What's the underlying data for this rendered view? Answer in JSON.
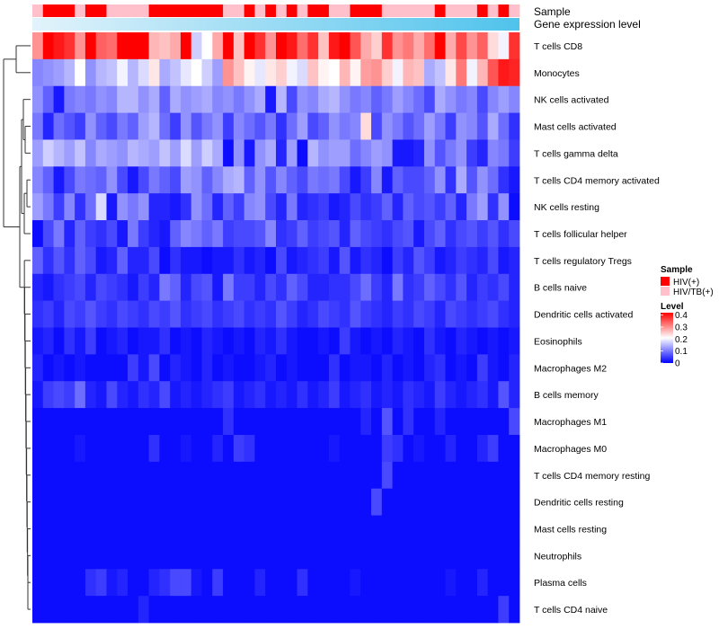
{
  "chart_data": {
    "type": "heatmap",
    "title": "",
    "annotation_rows": [
      "Sample",
      "Gene expression level"
    ],
    "rows": [
      "T cells CD8",
      "Monocytes",
      "NK cells activated",
      "Mast cells activated",
      "T cells gamma delta",
      "T cells CD4 memory activated",
      "NK cells resting",
      "T cells follicular helper",
      "T cells regulatory  Tregs",
      "B cells naive",
      "Dendritic cells activated",
      "Eosinophils",
      "Macrophages M2",
      "B cells memory",
      "Macrophages M1",
      "Macrophages M0",
      "T cells CD4 memory resting",
      "Dendritic cells resting",
      "Mast cells resting",
      "Neutrophils",
      "Plasma cells",
      "T cells CD4 naive"
    ],
    "sample_groups": [
      "HIV/TB(+)",
      "HIV(+)",
      "HIV(+)",
      "HIV(+)",
      "HIV/TB(+)",
      "HIV(+)",
      "HIV(+)",
      "HIV/TB(+)",
      "HIV/TB(+)",
      "HIV/TB(+)",
      "HIV/TB(+)",
      "HIV(+)",
      "HIV(+)",
      "HIV(+)",
      "HIV(+)",
      "HIV(+)",
      "HIV(+)",
      "HIV(+)",
      "HIV/TB(+)",
      "HIV/TB(+)",
      "HIV(+)",
      "HIV/TB(+)",
      "HIV(+)",
      "HIV/TB(+)",
      "HIV(+)",
      "HIV/TB(+)",
      "HIV(+)",
      "HIV(+)",
      "HIV/TB(+)",
      "HIV/TB(+)",
      "HIV(+)",
      "HIV(+)",
      "HIV(+)",
      "HIV/TB(+)",
      "HIV/TB(+)",
      "HIV/TB(+)",
      "HIV/TB(+)",
      "HIV/TB(+)",
      "HIV(+)",
      "HIV/TB(+)",
      "HIV/TB(+)",
      "HIV/TB(+)",
      "HIV(+)",
      "HIV/TB(+)",
      "HIV(+)",
      "HIV/TB(+)"
    ],
    "gene_expression_level_range": [
      0,
      1
    ],
    "values": [
      [
        0.3,
        0.42,
        0.4,
        0.38,
        0.3,
        0.42,
        0.34,
        0.33,
        0.42,
        0.42,
        0.42,
        0.27,
        0.26,
        0.28,
        0.42,
        0.17,
        0.21,
        0.28,
        0.42,
        0.26,
        0.42,
        0.38,
        0.3,
        0.42,
        0.4,
        0.33,
        0.38,
        0.26,
        0.4,
        0.42,
        0.35,
        0.28,
        0.25,
        0.38,
        0.3,
        0.32,
        0.28,
        0.33,
        0.42,
        0.28,
        0.36,
        0.3,
        0.34,
        0.24,
        0.2,
        0.38
      ],
      [
        0.11,
        0.12,
        0.13,
        0.15,
        0.21,
        0.12,
        0.15,
        0.16,
        0.2,
        0.15,
        0.18,
        0.23,
        0.14,
        0.16,
        0.19,
        0.21,
        0.17,
        0.13,
        0.3,
        0.26,
        0.22,
        0.19,
        0.23,
        0.25,
        0.2,
        0.18,
        0.26,
        0.22,
        0.21,
        0.27,
        0.22,
        0.29,
        0.3,
        0.25,
        0.2,
        0.27,
        0.26,
        0.14,
        0.16,
        0.23,
        0.32,
        0.2,
        0.27,
        0.35,
        0.4,
        0.39
      ],
      [
        0.12,
        0.08,
        0.02,
        0.1,
        0.11,
        0.1,
        0.12,
        0.11,
        0.15,
        0.15,
        0.12,
        0.14,
        0.08,
        0.14,
        0.12,
        0.13,
        0.14,
        0.11,
        0.12,
        0.1,
        0.12,
        0.14,
        0.02,
        0.15,
        0.06,
        0.12,
        0.11,
        0.14,
        0.15,
        0.12,
        0.1,
        0.11,
        0.08,
        0.1,
        0.13,
        0.11,
        0.09,
        0.06,
        0.14,
        0.12,
        0.1,
        0.11,
        0.06,
        0.11,
        0.13,
        0.11
      ],
      [
        0.1,
        0.03,
        0.09,
        0.07,
        0.05,
        0.12,
        0.08,
        0.06,
        0.1,
        0.08,
        0.13,
        0.15,
        0.09,
        0.05,
        0.12,
        0.07,
        0.1,
        0.12,
        0.05,
        0.11,
        0.09,
        0.07,
        0.1,
        0.04,
        0.09,
        0.13,
        0.06,
        0.08,
        0.12,
        0.1,
        0.11,
        0.24,
        0.06,
        0.12,
        0.1,
        0.07,
        0.09,
        0.13,
        0.1,
        0.05,
        0.12,
        0.11,
        0.07,
        0.14,
        0.09,
        0.04
      ],
      [
        0.13,
        0.17,
        0.15,
        0.13,
        0.16,
        0.11,
        0.14,
        0.13,
        0.12,
        0.15,
        0.14,
        0.13,
        0.16,
        0.13,
        0.18,
        0.13,
        0.17,
        0.14,
        0.01,
        0.12,
        0.02,
        0.12,
        0.14,
        0.03,
        0.13,
        0.01,
        0.15,
        0.12,
        0.13,
        0.13,
        0.09,
        0.11,
        0.13,
        0.12,
        0.02,
        0.02,
        0.03,
        0.12,
        0.07,
        0.1,
        0.12,
        0.05,
        0.03,
        0.11,
        0.1,
        0.05
      ],
      [
        0.11,
        0.08,
        0.02,
        0.06,
        0.1,
        0.09,
        0.08,
        0.12,
        0.06,
        0.02,
        0.06,
        0.1,
        0.08,
        0.06,
        0.13,
        0.12,
        0.08,
        0.11,
        0.14,
        0.15,
        0.08,
        0.12,
        0.07,
        0.11,
        0.08,
        0.06,
        0.1,
        0.09,
        0.1,
        0.06,
        0.02,
        0.05,
        0.11,
        0.02,
        0.08,
        0.06,
        0.06,
        0.08,
        0.12,
        0.04,
        0.14,
        0.07,
        0.12,
        0.09,
        0.04,
        0.02
      ],
      [
        0.13,
        0.1,
        0.05,
        0.11,
        0.04,
        0.09,
        0.18,
        0.02,
        0.12,
        0.1,
        0.12,
        0.03,
        0.03,
        0.02,
        0.04,
        0.12,
        0.09,
        0.03,
        0.08,
        0.05,
        0.11,
        0.12,
        0.06,
        0.03,
        0.1,
        0.03,
        0.04,
        0.05,
        0.02,
        0.03,
        0.06,
        0.04,
        0.05,
        0.08,
        0.03,
        0.08,
        0.06,
        0.07,
        0.05,
        0.08,
        0.03,
        0.1,
        0.13,
        0.04,
        0.12,
        0.01
      ],
      [
        0.01,
        0.06,
        0.1,
        0.03,
        0.08,
        0.05,
        0.04,
        0.06,
        0.02,
        0.1,
        0.05,
        0.03,
        0.02,
        0.08,
        0.11,
        0.1,
        0.08,
        0.1,
        0.05,
        0.06,
        0.06,
        0.07,
        0.11,
        0.04,
        0.05,
        0.08,
        0.05,
        0.06,
        0.07,
        0.03,
        0.08,
        0.06,
        0.05,
        0.04,
        0.06,
        0.07,
        0.02,
        0.06,
        0.08,
        0.04,
        0.06,
        0.07,
        0.05,
        0.07,
        0.04,
        0.06
      ],
      [
        0.08,
        0.04,
        0.07,
        0.04,
        0.08,
        0.06,
        0.02,
        0.03,
        0.08,
        0.03,
        0.03,
        0.06,
        0.01,
        0.04,
        0.02,
        0.02,
        0.01,
        0.02,
        0.02,
        0.04,
        0.02,
        0.03,
        0.01,
        0.06,
        0.02,
        0.03,
        0.04,
        0.05,
        0.02,
        0.07,
        0.02,
        0.04,
        0.03,
        0.01,
        0.05,
        0.03,
        0.07,
        0.05,
        0.02,
        0.03,
        0.05,
        0.04,
        0.03,
        0.06,
        0.02,
        0.03
      ],
      [
        0.03,
        0.02,
        0.04,
        0.05,
        0.06,
        0.03,
        0.06,
        0.05,
        0.04,
        0.02,
        0.05,
        0.03,
        0.1,
        0.08,
        0.03,
        0.06,
        0.07,
        0.02,
        0.1,
        0.05,
        0.05,
        0.03,
        0.06,
        0.04,
        0.08,
        0.06,
        0.03,
        0.03,
        0.04,
        0.04,
        0.06,
        0.09,
        0.05,
        0.03,
        0.1,
        0.04,
        0.05,
        0.08,
        0.06,
        0.04,
        0.07,
        0.03,
        0.05,
        0.04,
        0.06,
        0.03
      ],
      [
        0.04,
        0.05,
        0.03,
        0.06,
        0.05,
        0.07,
        0.05,
        0.04,
        0.06,
        0.05,
        0.04,
        0.06,
        0.05,
        0.07,
        0.04,
        0.05,
        0.06,
        0.04,
        0.05,
        0.06,
        0.04,
        0.05,
        0.04,
        0.07,
        0.05,
        0.03,
        0.04,
        0.06,
        0.05,
        0.04,
        0.07,
        0.05,
        0.04,
        0.03,
        0.05,
        0.04,
        0.06,
        0.05,
        0.03,
        0.06,
        0.05,
        0.04,
        0.05,
        0.06,
        0.04,
        0.03
      ],
      [
        0.02,
        0.03,
        0.01,
        0.04,
        0.02,
        0.05,
        0.01,
        0.02,
        0.03,
        0.01,
        0.02,
        0.02,
        0.04,
        0.01,
        0.02,
        0.01,
        0.03,
        0.02,
        0.01,
        0.02,
        0.01,
        0.03,
        0.02,
        0.04,
        0.02,
        0.01,
        0.01,
        0.02,
        0.01,
        0.05,
        0.02,
        0.01,
        0.02,
        0.01,
        0.03,
        0.02,
        0.01,
        0.04,
        0.02,
        0.01,
        0.03,
        0.02,
        0.01,
        0.02,
        0.01,
        0.02
      ],
      [
        0.03,
        0.01,
        0.02,
        0.01,
        0.02,
        0.01,
        0.01,
        0.01,
        0.01,
        0.05,
        0.02,
        0.06,
        0.01,
        0.03,
        0.02,
        0.01,
        0.03,
        0.01,
        0.02,
        0.01,
        0.01,
        0.02,
        0.03,
        0.01,
        0.02,
        0.01,
        0.01,
        0.01,
        0.04,
        0.01,
        0.02,
        0.02,
        0.01,
        0.03,
        0.01,
        0.02,
        0.01,
        0.03,
        0.04,
        0.01,
        0.02,
        0.01,
        0.05,
        0.02,
        0.01,
        0.03
      ],
      [
        0.02,
        0.05,
        0.06,
        0.05,
        0.09,
        0.03,
        0.02,
        0.06,
        0.03,
        0.02,
        0.04,
        0.03,
        0.06,
        0.02,
        0.03,
        0.02,
        0.03,
        0.04,
        0.05,
        0.02,
        0.03,
        0.04,
        0.02,
        0.03,
        0.02,
        0.04,
        0.02,
        0.03,
        0.05,
        0.02,
        0.03,
        0.04,
        0.02,
        0.03,
        0.02,
        0.04,
        0.03,
        0.02,
        0.05,
        0.03,
        0.02,
        0.03,
        0.04,
        0.02,
        0.07,
        0.03
      ],
      [
        0.01,
        0.01,
        0.01,
        0.01,
        0.01,
        0.01,
        0.01,
        0.01,
        0.01,
        0.01,
        0.01,
        0.01,
        0.01,
        0.01,
        0.01,
        0.01,
        0.01,
        0.01,
        0.04,
        0.01,
        0.01,
        0.01,
        0.01,
        0.01,
        0.01,
        0.01,
        0.01,
        0.01,
        0.01,
        0.01,
        0.01,
        0.03,
        0.01,
        0.07,
        0.01,
        0.04,
        0.01,
        0.01,
        0.03,
        0.01,
        0.01,
        0.01,
        0.01,
        0.01,
        0.01,
        0.06
      ],
      [
        0.01,
        0.01,
        0.01,
        0.01,
        0.02,
        0.01,
        0.01,
        0.01,
        0.01,
        0.01,
        0.01,
        0.04,
        0.01,
        0.01,
        0.02,
        0.01,
        0.01,
        0.03,
        0.01,
        0.05,
        0.04,
        0.01,
        0.01,
        0.01,
        0.01,
        0.01,
        0.01,
        0.01,
        0.02,
        0.01,
        0.01,
        0.01,
        0.01,
        0.05,
        0.04,
        0.01,
        0.02,
        0.01,
        0.01,
        0.03,
        0.01,
        0.01,
        0.03,
        0.05,
        0.01,
        0.01
      ],
      [
        0.01,
        0.01,
        0.01,
        0.01,
        0.01,
        0.01,
        0.01,
        0.01,
        0.01,
        0.01,
        0.01,
        0.01,
        0.01,
        0.01,
        0.01,
        0.01,
        0.01,
        0.01,
        0.01,
        0.01,
        0.01,
        0.01,
        0.01,
        0.01,
        0.01,
        0.01,
        0.01,
        0.01,
        0.01,
        0.01,
        0.01,
        0.01,
        0.01,
        0.06,
        0.01,
        0.01,
        0.01,
        0.01,
        0.01,
        0.01,
        0.01,
        0.01,
        0.01,
        0.01,
        0.01,
        0.01
      ],
      [
        0.01,
        0.01,
        0.01,
        0.01,
        0.01,
        0.01,
        0.01,
        0.01,
        0.01,
        0.01,
        0.01,
        0.01,
        0.01,
        0.01,
        0.01,
        0.01,
        0.01,
        0.01,
        0.01,
        0.01,
        0.01,
        0.01,
        0.01,
        0.01,
        0.01,
        0.01,
        0.01,
        0.01,
        0.01,
        0.01,
        0.01,
        0.01,
        0.06,
        0.01,
        0.01,
        0.01,
        0.01,
        0.01,
        0.01,
        0.01,
        0.01,
        0.01,
        0.01,
        0.01,
        0.01,
        0.01
      ],
      [
        0.01,
        0.01,
        0.01,
        0.01,
        0.01,
        0.01,
        0.01,
        0.01,
        0.01,
        0.01,
        0.01,
        0.01,
        0.01,
        0.01,
        0.01,
        0.01,
        0.01,
        0.01,
        0.01,
        0.01,
        0.01,
        0.01,
        0.01,
        0.01,
        0.01,
        0.01,
        0.01,
        0.01,
        0.01,
        0.01,
        0.01,
        0.01,
        0.01,
        0.01,
        0.01,
        0.01,
        0.01,
        0.01,
        0.01,
        0.01,
        0.01,
        0.01,
        0.01,
        0.01,
        0.01,
        0.01
      ],
      [
        0.01,
        0.01,
        0.01,
        0.01,
        0.01,
        0.01,
        0.01,
        0.01,
        0.01,
        0.01,
        0.01,
        0.01,
        0.01,
        0.01,
        0.01,
        0.01,
        0.01,
        0.01,
        0.01,
        0.01,
        0.01,
        0.01,
        0.01,
        0.01,
        0.01,
        0.01,
        0.01,
        0.01,
        0.01,
        0.01,
        0.01,
        0.01,
        0.01,
        0.01,
        0.01,
        0.01,
        0.01,
        0.01,
        0.01,
        0.01,
        0.01,
        0.01,
        0.01,
        0.01,
        0.01,
        0.01
      ],
      [
        0.01,
        0.01,
        0.01,
        0.01,
        0.01,
        0.04,
        0.05,
        0.02,
        0.03,
        0.01,
        0.01,
        0.03,
        0.04,
        0.06,
        0.06,
        0.02,
        0.01,
        0.05,
        0.01,
        0.01,
        0.01,
        0.03,
        0.01,
        0.01,
        0.01,
        0.04,
        0.01,
        0.01,
        0.01,
        0.01,
        0.02,
        0.01,
        0.01,
        0.01,
        0.01,
        0.01,
        0.01,
        0.01,
        0.01,
        0.02,
        0.01,
        0.01,
        0.03,
        0.01,
        0.01,
        0.01
      ],
      [
        0.01,
        0.01,
        0.01,
        0.01,
        0.01,
        0.01,
        0.01,
        0.01,
        0.01,
        0.01,
        0.03,
        0.01,
        0.01,
        0.01,
        0.01,
        0.01,
        0.01,
        0.01,
        0.01,
        0.01,
        0.01,
        0.01,
        0.01,
        0.01,
        0.01,
        0.01,
        0.01,
        0.01,
        0.01,
        0.01,
        0.01,
        0.01,
        0.01,
        0.01,
        0.01,
        0.01,
        0.01,
        0.01,
        0.01,
        0.01,
        0.01,
        0.01,
        0.01,
        0.01,
        0.05,
        0.01
      ]
    ],
    "legend_sample": {
      "title": "Sample",
      "entries": [
        {
          "label": "HIV(+)",
          "color": "#ff0000"
        },
        {
          "label": "HIV/TB(+)",
          "color": "#ffc0cb"
        }
      ]
    },
    "legend_level": {
      "title": "Level",
      "ticks": [
        "0.4",
        "0.3",
        "0.2",
        "0.1",
        "0"
      ],
      "tick_values": [
        0.4,
        0.3,
        0.2,
        0.1,
        0
      ],
      "range": [
        0,
        0.42
      ]
    },
    "colors": {
      "low": "#0000ff",
      "mid": "#ffffff",
      "high": "#ff0000",
      "expr_low": "#e2f3fb",
      "expr_high": "#4fc3ec"
    },
    "dendrogram": "rows clustered (left side)"
  }
}
